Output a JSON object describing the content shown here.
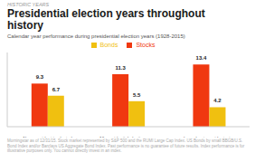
{
  "chart_data": {
    "type": "bar",
    "supertitle": "HISTORIC YEARS",
    "title": "Presidential election years throughout\nhistory",
    "subtitle": "Calendar year performance during presidential election years (1928-2015)",
    "footnote": "Morningstar as of 12/31/15. Stock market represented by S&P 500 and the RUMI Large Cap Index. US Bonds by small BBGB/U.S. Bond Index and/or Barclays US Aggregate Bond Index. Past performance is no guarantee of future results. Index performance is for illustrative purposes only. You cannot directly invest in an index.",
    "categories": [
      "New president is elected",
      "All presidential election years",
      "Incumbent president wins"
    ],
    "series": [
      {
        "name": "Stocks",
        "color": "#f03810",
        "values": [
          9.3,
          11.3,
          13.4
        ]
      },
      {
        "name": "Bonds",
        "color": "#f0c010",
        "values": [
          6.7,
          5.5,
          4.2
        ]
      }
    ],
    "ylim": [
      0,
      16
    ],
    "tick_labels": "x",
    "grid": false,
    "legend": "top",
    "data_labels": true
  }
}
